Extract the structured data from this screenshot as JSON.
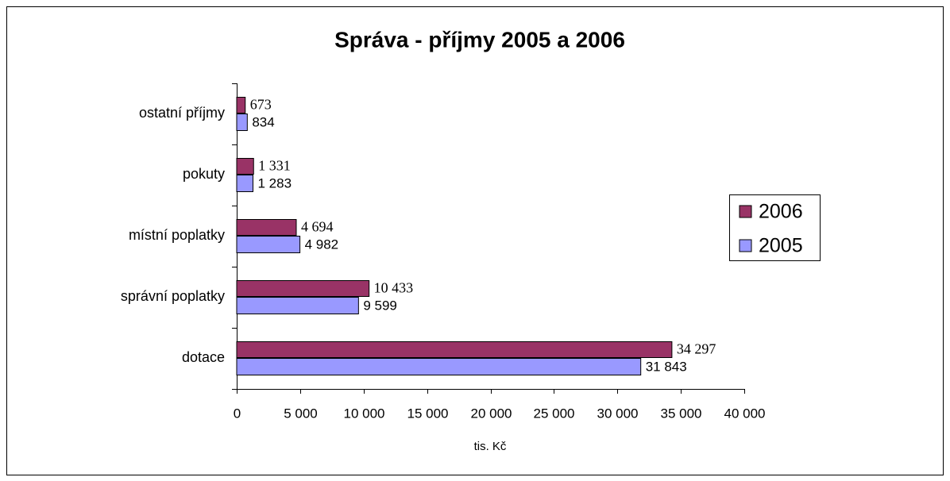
{
  "chart_data": {
    "type": "bar",
    "orientation": "horizontal",
    "title": "Správa - příjmy 2005 a 2006",
    "x_label": "tis. Kč",
    "categories": [
      "ostatní příjmy",
      "pokuty",
      "místní poplatky",
      "správní poplatky",
      "dotace"
    ],
    "series": [
      {
        "name": "2006",
        "color": "#993366",
        "values": [
          673,
          1331,
          4694,
          10433,
          34297
        ],
        "value_labels": [
          "673",
          "1 331",
          "4 694",
          "10 433",
          "34 297"
        ]
      },
      {
        "name": "2005",
        "color": "#9999ff",
        "values": [
          834,
          1283,
          4982,
          9599,
          31843
        ],
        "value_labels": [
          "834",
          "1 283",
          "4 982",
          "9 599",
          "31 843"
        ]
      }
    ],
    "xlim": [
      0,
      40000
    ],
    "xticks": [
      0,
      {
        "value": 5000,
        "label": "5 000"
      },
      {
        "value": 10000,
        "label": "10 000"
      },
      {
        "value": 15000,
        "label": "15 000"
      },
      {
        "value": 20000,
        "label": "20 000"
      },
      {
        "value": 25000,
        "label": "25 000"
      },
      {
        "value": 30000,
        "label": "30 000"
      },
      {
        "value": 35000,
        "label": "35 000"
      },
      {
        "value": 40000,
        "label": "40 000"
      }
    ],
    "legend": "right"
  }
}
